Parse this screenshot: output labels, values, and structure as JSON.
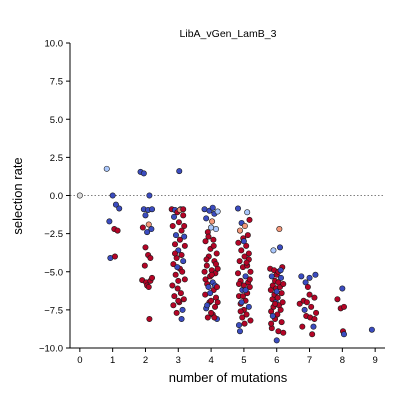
{
  "chart_data": {
    "type": "scatter",
    "title": "LibA_vGen_LamB_3",
    "xlabel": "number of mutations",
    "ylabel": "selection rate",
    "xlim": [
      -0.3,
      9.3
    ],
    "ylim": [
      -10.0,
      10.0
    ],
    "x_ticks": [
      0,
      1,
      2,
      3,
      4,
      5,
      6,
      7,
      8,
      9
    ],
    "x_tick_labels": [
      "0",
      "1",
      "2",
      "3",
      "4",
      "5",
      "6",
      "7",
      "8",
      "9"
    ],
    "y_ticks": [
      10.0,
      7.5,
      5.0,
      2.5,
      0.0,
      -2.5,
      -5.0,
      -7.5,
      -10.0
    ],
    "y_tick_labels": [
      "10.0",
      "7.5",
      "5.0",
      "2.5",
      "0.0",
      "−2.5",
      "−5.0",
      "−7.5",
      "−10.0"
    ],
    "reference_line": {
      "y": 0.0,
      "style": "dotted",
      "color": "#808080"
    },
    "grid": false,
    "legend": "none",
    "marker": "circle with black edge",
    "colormap": "coolwarm",
    "colors": {
      "red": "#b40426",
      "lightred": "#f4987a",
      "blue": "#3b4cc0",
      "lightblue": "#aac7fd",
      "gray": "#dddddd"
    },
    "points": [
      {
        "x": 0.0,
        "y": 0.0,
        "c": "gray"
      },
      {
        "x": 0.82,
        "y": 1.75,
        "c": "lightblue"
      },
      {
        "x": 0.9,
        "y": -1.7,
        "c": "blue"
      },
      {
        "x": 0.93,
        "y": -4.1,
        "c": "blue"
      },
      {
        "x": 1.0,
        "y": 0.0,
        "c": "blue"
      },
      {
        "x": 1.05,
        "y": -2.2,
        "c": "red"
      },
      {
        "x": 1.07,
        "y": -4.0,
        "c": "red"
      },
      {
        "x": 1.1,
        "y": -0.6,
        "c": "blue"
      },
      {
        "x": 1.15,
        "y": -2.3,
        "c": "red"
      },
      {
        "x": 1.2,
        "y": -0.85,
        "c": "blue"
      },
      {
        "x": 1.85,
        "y": 1.55,
        "c": "blue"
      },
      {
        "x": 1.9,
        "y": -5.55,
        "c": "red"
      },
      {
        "x": 1.92,
        "y": -2.1,
        "c": "red"
      },
      {
        "x": 1.95,
        "y": 1.45,
        "c": "blue"
      },
      {
        "x": 1.95,
        "y": -0.9,
        "c": "blue"
      },
      {
        "x": 1.98,
        "y": -4.6,
        "c": "red"
      },
      {
        "x": 2.0,
        "y": -3.4,
        "c": "red"
      },
      {
        "x": 2.0,
        "y": -1.3,
        "c": "blue"
      },
      {
        "x": 2.02,
        "y": -5.7,
        "c": "red"
      },
      {
        "x": 2.05,
        "y": -2.4,
        "c": "blue"
      },
      {
        "x": 2.05,
        "y": -5.9,
        "c": "red"
      },
      {
        "x": 2.08,
        "y": -0.95,
        "c": "blue"
      },
      {
        "x": 2.08,
        "y": -3.9,
        "c": "red"
      },
      {
        "x": 2.1,
        "y": -1.9,
        "c": "lightred"
      },
      {
        "x": 2.1,
        "y": -6.0,
        "c": "red"
      },
      {
        "x": 2.12,
        "y": 0.0,
        "c": "blue"
      },
      {
        "x": 2.12,
        "y": -8.1,
        "c": "red"
      },
      {
        "x": 2.15,
        "y": -4.1,
        "c": "red"
      },
      {
        "x": 2.15,
        "y": -5.6,
        "c": "red"
      },
      {
        "x": 2.18,
        "y": -2.2,
        "c": "blue"
      },
      {
        "x": 2.2,
        "y": -0.9,
        "c": "blue"
      },
      {
        "x": 2.2,
        "y": -5.4,
        "c": "red"
      },
      {
        "x": 2.8,
        "y": -0.9,
        "c": "red"
      },
      {
        "x": 2.82,
        "y": -5.9,
        "c": "red"
      },
      {
        "x": 2.83,
        "y": -2.0,
        "c": "red"
      },
      {
        "x": 2.85,
        "y": -4.5,
        "c": "red"
      },
      {
        "x": 2.85,
        "y": -7.2,
        "c": "red"
      },
      {
        "x": 2.87,
        "y": -1.4,
        "c": "blue"
      },
      {
        "x": 2.88,
        "y": -6.6,
        "c": "red"
      },
      {
        "x": 2.9,
        "y": -3.2,
        "c": "red"
      },
      {
        "x": 2.9,
        "y": -0.95,
        "c": "blue"
      },
      {
        "x": 2.92,
        "y": -5.2,
        "c": "red"
      },
      {
        "x": 2.93,
        "y": -2.6,
        "c": "blue"
      },
      {
        "x": 2.95,
        "y": -7.7,
        "c": "red"
      },
      {
        "x": 2.95,
        "y": -4.1,
        "c": "red"
      },
      {
        "x": 2.97,
        "y": -1.1,
        "c": "red"
      },
      {
        "x": 2.98,
        "y": -6.1,
        "c": "red"
      },
      {
        "x": 3.0,
        "y": -3.6,
        "c": "blue"
      },
      {
        "x": 3.0,
        "y": -5.6,
        "c": "red"
      },
      {
        "x": 3.02,
        "y": -1.75,
        "c": "red"
      },
      {
        "x": 3.03,
        "y": -7.0,
        "c": "red"
      },
      {
        "x": 3.05,
        "y": -2.9,
        "c": "red"
      },
      {
        "x": 3.05,
        "y": -4.8,
        "c": "red"
      },
      {
        "x": 3.07,
        "y": -0.9,
        "c": "blue"
      },
      {
        "x": 3.08,
        "y": -6.4,
        "c": "red"
      },
      {
        "x": 3.1,
        "y": -3.9,
        "c": "red"
      },
      {
        "x": 3.1,
        "y": -2.3,
        "c": "red"
      },
      {
        "x": 3.12,
        "y": -5.0,
        "c": "red"
      },
      {
        "x": 3.13,
        "y": -7.5,
        "c": "blue"
      },
      {
        "x": 3.15,
        "y": -1.3,
        "c": "red"
      },
      {
        "x": 3.15,
        "y": -4.3,
        "c": "blue"
      },
      {
        "x": 3.17,
        "y": -6.8,
        "c": "red"
      },
      {
        "x": 3.18,
        "y": -2.7,
        "c": "blue"
      },
      {
        "x": 3.2,
        "y": -5.5,
        "c": "red"
      },
      {
        "x": 3.2,
        "y": -3.3,
        "c": "red"
      },
      {
        "x": 3.03,
        "y": 1.6,
        "c": "blue"
      },
      {
        "x": 3.1,
        "y": -8.1,
        "c": "blue"
      },
      {
        "x": 3.05,
        "y": -0.95,
        "c": "lightred"
      },
      {
        "x": 2.97,
        "y": -4.7,
        "c": "blue"
      },
      {
        "x": 3.15,
        "y": -0.9,
        "c": "red"
      },
      {
        "x": 2.9,
        "y": -3.8,
        "c": "red"
      },
      {
        "x": 3.0,
        "y": -6.9,
        "c": "red"
      },
      {
        "x": 3.18,
        "y": -2.0,
        "c": "red"
      },
      {
        "x": 3.8,
        "y": -0.9,
        "c": "blue"
      },
      {
        "x": 3.8,
        "y": -5.0,
        "c": "red"
      },
      {
        "x": 3.82,
        "y": -6.5,
        "c": "red"
      },
      {
        "x": 3.83,
        "y": -3.0,
        "c": "red"
      },
      {
        "x": 3.85,
        "y": -7.4,
        "c": "blue"
      },
      {
        "x": 3.85,
        "y": -1.5,
        "c": "blue"
      },
      {
        "x": 3.87,
        "y": -4.6,
        "c": "red"
      },
      {
        "x": 3.88,
        "y": -5.8,
        "c": "red"
      },
      {
        "x": 3.9,
        "y": -8.0,
        "c": "red"
      },
      {
        "x": 3.9,
        "y": -2.4,
        "c": "red"
      },
      {
        "x": 3.92,
        "y": -6.0,
        "c": "blue"
      },
      {
        "x": 3.93,
        "y": -4.0,
        "c": "red"
      },
      {
        "x": 3.95,
        "y": -1.0,
        "c": "blue"
      },
      {
        "x": 3.95,
        "y": -7.0,
        "c": "red"
      },
      {
        "x": 3.97,
        "y": -5.3,
        "c": "red"
      },
      {
        "x": 3.98,
        "y": -3.5,
        "c": "red"
      },
      {
        "x": 4.0,
        "y": -2.1,
        "c": "lightblue"
      },
      {
        "x": 4.0,
        "y": -6.9,
        "c": "red"
      },
      {
        "x": 4.02,
        "y": -4.9,
        "c": "red"
      },
      {
        "x": 4.03,
        "y": -1.7,
        "c": "lightred"
      },
      {
        "x": 4.05,
        "y": -7.8,
        "c": "red"
      },
      {
        "x": 4.05,
        "y": -5.7,
        "c": "blue"
      },
      {
        "x": 4.07,
        "y": -2.9,
        "c": "red"
      },
      {
        "x": 4.08,
        "y": -6.2,
        "c": "red"
      },
      {
        "x": 4.1,
        "y": -4.3,
        "c": "red"
      },
      {
        "x": 4.1,
        "y": -1.2,
        "c": "blue"
      },
      {
        "x": 4.12,
        "y": -7.3,
        "c": "red"
      },
      {
        "x": 4.13,
        "y": -5.1,
        "c": "red"
      },
      {
        "x": 4.15,
        "y": -2.2,
        "c": "lightblue"
      },
      {
        "x": 4.15,
        "y": -6.7,
        "c": "red"
      },
      {
        "x": 4.17,
        "y": -3.8,
        "c": "red"
      },
      {
        "x": 4.18,
        "y": -8.1,
        "c": "blue"
      },
      {
        "x": 4.2,
        "y": -4.8,
        "c": "red"
      },
      {
        "x": 4.2,
        "y": -1.05,
        "c": "lightblue"
      },
      {
        "x": 4.05,
        "y": -0.8,
        "c": "blue"
      },
      {
        "x": 3.88,
        "y": -7.2,
        "c": "blue"
      },
      {
        "x": 4.12,
        "y": -5.9,
        "c": "blue"
      },
      {
        "x": 3.97,
        "y": -6.4,
        "c": "blue"
      },
      {
        "x": 4.08,
        "y": -3.3,
        "c": "red"
      },
      {
        "x": 3.83,
        "y": -5.5,
        "c": "red"
      },
      {
        "x": 4.0,
        "y": -7.7,
        "c": "red"
      },
      {
        "x": 4.15,
        "y": -4.5,
        "c": "red"
      },
      {
        "x": 3.92,
        "y": -2.7,
        "c": "red"
      },
      {
        "x": 4.18,
        "y": -6.0,
        "c": "red"
      },
      {
        "x": 4.1,
        "y": -8.0,
        "c": "red"
      },
      {
        "x": 3.86,
        "y": -4.2,
        "c": "red"
      },
      {
        "x": 4.02,
        "y": -5.2,
        "c": "red"
      },
      {
        "x": 4.2,
        "y": -7.0,
        "c": "red"
      },
      {
        "x": 4.82,
        "y": -0.85,
        "c": "blue"
      },
      {
        "x": 4.82,
        "y": -5.1,
        "c": "red"
      },
      {
        "x": 4.83,
        "y": -3.1,
        "c": "red"
      },
      {
        "x": 4.85,
        "y": -6.6,
        "c": "red"
      },
      {
        "x": 4.85,
        "y": -8.5,
        "c": "blue"
      },
      {
        "x": 4.87,
        "y": -4.3,
        "c": "red"
      },
      {
        "x": 4.88,
        "y": -2.3,
        "c": "lightred"
      },
      {
        "x": 4.9,
        "y": -7.1,
        "c": "red"
      },
      {
        "x": 4.9,
        "y": -5.6,
        "c": "red"
      },
      {
        "x": 4.92,
        "y": -3.6,
        "c": "red"
      },
      {
        "x": 4.93,
        "y": -1.8,
        "c": "blue"
      },
      {
        "x": 4.95,
        "y": -6.2,
        "c": "blue"
      },
      {
        "x": 4.95,
        "y": -8.0,
        "c": "red"
      },
      {
        "x": 4.97,
        "y": -4.7,
        "c": "red"
      },
      {
        "x": 4.98,
        "y": -2.8,
        "c": "red"
      },
      {
        "x": 5.0,
        "y": -5.9,
        "c": "red"
      },
      {
        "x": 5.0,
        "y": -7.5,
        "c": "red"
      },
      {
        "x": 5.02,
        "y": -4.0,
        "c": "red"
      },
      {
        "x": 5.03,
        "y": -2.0,
        "c": "lightred"
      },
      {
        "x": 5.05,
        "y": -6.9,
        "c": "red"
      },
      {
        "x": 5.05,
        "y": -5.3,
        "c": "blue"
      },
      {
        "x": 5.07,
        "y": -3.3,
        "c": "red"
      },
      {
        "x": 5.08,
        "y": -7.8,
        "c": "red"
      },
      {
        "x": 5.1,
        "y": -4.6,
        "c": "red"
      },
      {
        "x": 5.1,
        "y": -6.4,
        "c": "red"
      },
      {
        "x": 5.12,
        "y": -2.6,
        "c": "red"
      },
      {
        "x": 5.13,
        "y": -5.7,
        "c": "red"
      },
      {
        "x": 5.15,
        "y": -7.3,
        "c": "blue"
      },
      {
        "x": 5.15,
        "y": -4.2,
        "c": "red"
      },
      {
        "x": 5.17,
        "y": -1.6,
        "c": "red"
      },
      {
        "x": 5.18,
        "y": -6.0,
        "c": "red"
      },
      {
        "x": 5.2,
        "y": -8.2,
        "c": "red"
      },
      {
        "x": 5.2,
        "y": -5.0,
        "c": "red"
      },
      {
        "x": 4.88,
        "y": -8.9,
        "c": "blue"
      },
      {
        "x": 5.0,
        "y": -3.0,
        "c": "blue"
      },
      {
        "x": 5.1,
        "y": -1.1,
        "c": "lightblue"
      },
      {
        "x": 4.93,
        "y": -7.0,
        "c": "blue"
      },
      {
        "x": 5.05,
        "y": -6.2,
        "c": "blue"
      },
      {
        "x": 4.85,
        "y": -5.8,
        "c": "red"
      },
      {
        "x": 5.15,
        "y": -3.8,
        "c": "red"
      },
      {
        "x": 4.97,
        "y": -6.6,
        "c": "red"
      },
      {
        "x": 5.08,
        "y": -4.4,
        "c": "red"
      },
      {
        "x": 4.9,
        "y": -7.6,
        "c": "red"
      },
      {
        "x": 5.18,
        "y": -5.5,
        "c": "red"
      },
      {
        "x": 5.02,
        "y": -8.4,
        "c": "red"
      },
      {
        "x": 5.8,
        "y": -4.8,
        "c": "red"
      },
      {
        "x": 5.82,
        "y": -6.2,
        "c": "red"
      },
      {
        "x": 5.83,
        "y": -7.6,
        "c": "red"
      },
      {
        "x": 5.85,
        "y": -5.3,
        "c": "blue"
      },
      {
        "x": 5.85,
        "y": -8.7,
        "c": "red"
      },
      {
        "x": 5.87,
        "y": -6.8,
        "c": "red"
      },
      {
        "x": 5.88,
        "y": -5.9,
        "c": "red"
      },
      {
        "x": 5.9,
        "y": -3.6,
        "c": "lightblue"
      },
      {
        "x": 5.9,
        "y": -7.3,
        "c": "red"
      },
      {
        "x": 5.92,
        "y": -4.9,
        "c": "red"
      },
      {
        "x": 5.93,
        "y": -6.5,
        "c": "red"
      },
      {
        "x": 5.95,
        "y": -8.1,
        "c": "red"
      },
      {
        "x": 5.95,
        "y": -5.6,
        "c": "red"
      },
      {
        "x": 5.97,
        "y": -7.0,
        "c": "blue"
      },
      {
        "x": 5.98,
        "y": -6.1,
        "c": "red"
      },
      {
        "x": 6.0,
        "y": -9.5,
        "c": "blue"
      },
      {
        "x": 6.0,
        "y": -5.2,
        "c": "red"
      },
      {
        "x": 6.02,
        "y": -7.8,
        "c": "red"
      },
      {
        "x": 6.03,
        "y": -6.7,
        "c": "red"
      },
      {
        "x": 6.05,
        "y": -5.0,
        "c": "red"
      },
      {
        "x": 6.05,
        "y": -8.9,
        "c": "red"
      },
      {
        "x": 6.07,
        "y": -7.2,
        "c": "red"
      },
      {
        "x": 6.08,
        "y": -2.2,
        "c": "lightred"
      },
      {
        "x": 6.1,
        "y": -6.0,
        "c": "red"
      },
      {
        "x": 6.1,
        "y": -3.4,
        "c": "blue"
      },
      {
        "x": 6.12,
        "y": -7.5,
        "c": "red"
      },
      {
        "x": 6.13,
        "y": -5.4,
        "c": "blue"
      },
      {
        "x": 6.15,
        "y": -8.3,
        "c": "red"
      },
      {
        "x": 6.15,
        "y": -6.4,
        "c": "red"
      },
      {
        "x": 6.17,
        "y": -4.7,
        "c": "red"
      },
      {
        "x": 6.18,
        "y": -7.0,
        "c": "red"
      },
      {
        "x": 6.2,
        "y": -5.8,
        "c": "red"
      },
      {
        "x": 6.2,
        "y": -9.0,
        "c": "red"
      },
      {
        "x": 5.88,
        "y": -7.9,
        "c": "blue"
      },
      {
        "x": 6.0,
        "y": -6.3,
        "c": "blue"
      },
      {
        "x": 6.12,
        "y": -4.9,
        "c": "blue"
      },
      {
        "x": 5.95,
        "y": -7.1,
        "c": "red"
      },
      {
        "x": 6.05,
        "y": -5.7,
        "c": "red"
      },
      {
        "x": 5.83,
        "y": -8.4,
        "c": "red"
      },
      {
        "x": 6.7,
        "y": -7.1,
        "c": "red"
      },
      {
        "x": 6.75,
        "y": -5.3,
        "c": "blue"
      },
      {
        "x": 6.78,
        "y": -8.6,
        "c": "red"
      },
      {
        "x": 6.82,
        "y": -6.9,
        "c": "red"
      },
      {
        "x": 6.85,
        "y": -7.5,
        "c": "blue"
      },
      {
        "x": 6.88,
        "y": -5.7,
        "c": "blue"
      },
      {
        "x": 6.9,
        "y": -7.9,
        "c": "red"
      },
      {
        "x": 6.95,
        "y": -6.0,
        "c": "red"
      },
      {
        "x": 7.0,
        "y": -5.4,
        "c": "blue"
      },
      {
        "x": 7.02,
        "y": -8.0,
        "c": "red"
      },
      {
        "x": 7.05,
        "y": -7.3,
        "c": "red"
      },
      {
        "x": 7.08,
        "y": -9.1,
        "c": "red"
      },
      {
        "x": 7.12,
        "y": -8.6,
        "c": "blue"
      },
      {
        "x": 7.15,
        "y": -6.7,
        "c": "red"
      },
      {
        "x": 7.18,
        "y": -5.2,
        "c": "blue"
      },
      {
        "x": 7.2,
        "y": -7.7,
        "c": "red"
      },
      {
        "x": 6.92,
        "y": -7.0,
        "c": "red"
      },
      {
        "x": 7.0,
        "y": -6.5,
        "c": "red"
      },
      {
        "x": 7.15,
        "y": -8.1,
        "c": "red"
      },
      {
        "x": 7.85,
        "y": -6.8,
        "c": "red"
      },
      {
        "x": 7.95,
        "y": -7.4,
        "c": "red"
      },
      {
        "x": 8.0,
        "y": -6.1,
        "c": "blue"
      },
      {
        "x": 8.02,
        "y": -8.9,
        "c": "red"
      },
      {
        "x": 8.05,
        "y": -7.3,
        "c": "red"
      },
      {
        "x": 8.05,
        "y": -9.1,
        "c": "blue"
      },
      {
        "x": 8.9,
        "y": -8.8,
        "c": "blue"
      }
    ]
  }
}
